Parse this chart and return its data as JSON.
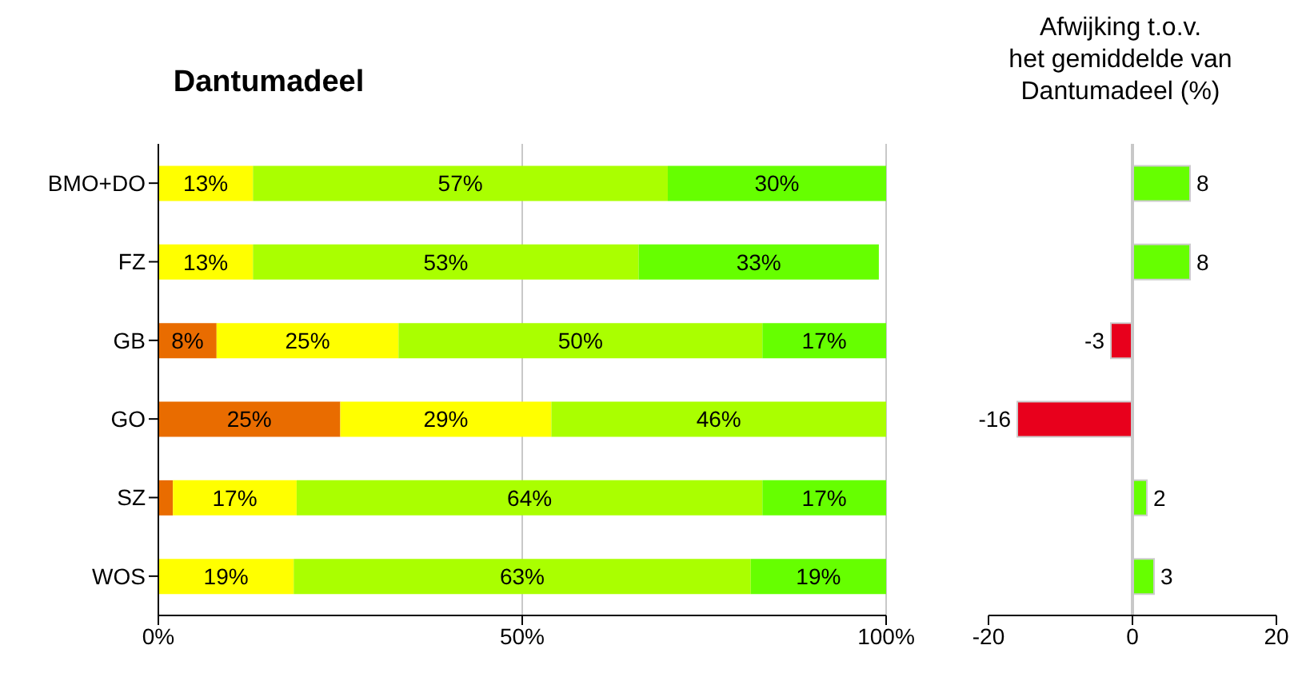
{
  "chart_data": [
    {
      "type": "bar",
      "title": "Dantumadeel",
      "orientation": "horizontal",
      "stacked": true,
      "categories": [
        "BMO+DO",
        "FZ",
        "GB",
        "GO",
        "SZ",
        "WOS"
      ],
      "series": [
        {
          "color": "#e96c00",
          "values": [
            0,
            0,
            8,
            25,
            2,
            0
          ],
          "value_labels": [
            null,
            null,
            "8%",
            "25%",
            null,
            null
          ]
        },
        {
          "color": "#ffff00",
          "values": [
            13,
            13,
            25,
            29,
            17,
            18.6
          ],
          "value_labels": [
            "13%",
            "13%",
            "25%",
            "29%",
            "17%",
            "19%"
          ]
        },
        {
          "color": "#aaff00",
          "values": [
            57,
            53,
            50,
            46,
            64,
            62.8
          ],
          "value_labels": [
            "57%",
            "53%",
            "50%",
            "46%",
            "64%",
            "63%"
          ]
        },
        {
          "color": "#66ff00",
          "values": [
            30,
            33,
            17,
            0,
            17,
            18.6
          ],
          "value_labels": [
            "30%",
            "33%",
            "17%",
            null,
            "17%",
            "19%"
          ]
        }
      ],
      "xlim": [
        0,
        100
      ],
      "xticks": [
        {
          "value": 0,
          "label": "0%"
        },
        {
          "value": 50,
          "label": "50%"
        },
        {
          "value": 100,
          "label": "100%"
        }
      ],
      "grid": "x",
      "legend": false
    },
    {
      "type": "bar",
      "title": "Afwijking t.o.v.\nhet gemiddelde van\nDantumadeel (%)",
      "orientation": "horizontal",
      "categories": [
        null,
        null,
        null,
        null,
        null,
        null
      ],
      "values": [
        8,
        8,
        -3,
        -16,
        2,
        3
      ],
      "colors": [
        "#66ff00",
        "#66ff00",
        "#e8001c",
        "#e8001c",
        "#66ff00",
        "#66ff00"
      ],
      "data_labels": true,
      "xlim": [
        -20,
        20
      ],
      "xticks": [
        -20,
        0,
        20
      ],
      "tick_labels": "x",
      "ref_lines": [
        {
          "axis": "x",
          "value": 0,
          "color": "#c8c8c8"
        }
      ],
      "legend": false
    }
  ]
}
